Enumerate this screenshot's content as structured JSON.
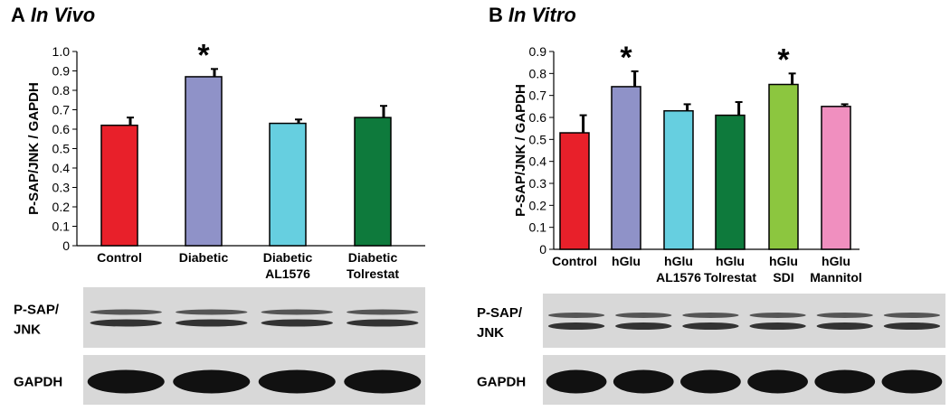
{
  "chart_data": [
    {
      "type": "bar",
      "panel": "A",
      "title": "In Vivo",
      "y_label": "P-SAP/JNK  / GAPDH",
      "categories": [
        [
          "Control"
        ],
        [
          "Diabetic"
        ],
        [
          "Diabetic",
          "AL1576"
        ],
        [
          "Diabetic",
          "Tolrestat"
        ]
      ],
      "values": [
        0.62,
        0.87,
        0.63,
        0.66
      ],
      "errors": [
        0.04,
        0.04,
        0.02,
        0.06
      ],
      "colors": [
        "#e8202a",
        "#8f92c8",
        "#66cfe0",
        "#0e7a3c"
      ],
      "markers": [
        null,
        "*",
        null,
        null
      ],
      "ylim": [
        0,
        1
      ],
      "yticks": [
        0,
        0.1,
        0.2,
        0.3,
        0.4,
        0.5,
        0.6,
        0.7,
        0.8,
        0.9,
        {
          "value": 1,
          "label": "1.0"
        }
      ],
      "blot_labels": [
        [
          "P-SAP/",
          "JNK"
        ],
        [
          "GAPDH"
        ]
      ]
    },
    {
      "type": "bar",
      "panel": "B",
      "title": "In Vitro",
      "y_label": "P-SAP/JNK / GAPDH",
      "categories": [
        [
          "Control"
        ],
        [
          "hGlu"
        ],
        [
          "hGlu",
          "AL1576"
        ],
        [
          "hGlu",
          "Tolrestat"
        ],
        [
          "hGlu",
          "SDI"
        ],
        [
          "hGlu",
          "Mannitol"
        ]
      ],
      "values": [
        0.53,
        0.74,
        0.63,
        0.61,
        0.75,
        0.65
      ],
      "errors": [
        0.08,
        0.07,
        0.03,
        0.06,
        0.05,
        0.01
      ],
      "colors": [
        "#e8202a",
        "#8f92c8",
        "#66cfe0",
        "#0e7a3c",
        "#8cc63f",
        "#f08fbf"
      ],
      "markers": [
        null,
        "*",
        null,
        null,
        "*",
        null
      ],
      "ylim": [
        0,
        0.9
      ],
      "yticks": [
        0,
        0.1,
        0.2,
        0.3,
        0.4,
        0.5,
        0.6,
        0.7,
        0.8,
        0.9
      ],
      "blot_labels": [
        [
          "P-SAP/",
          "JNK"
        ],
        [
          "GAPDH"
        ]
      ]
    }
  ]
}
